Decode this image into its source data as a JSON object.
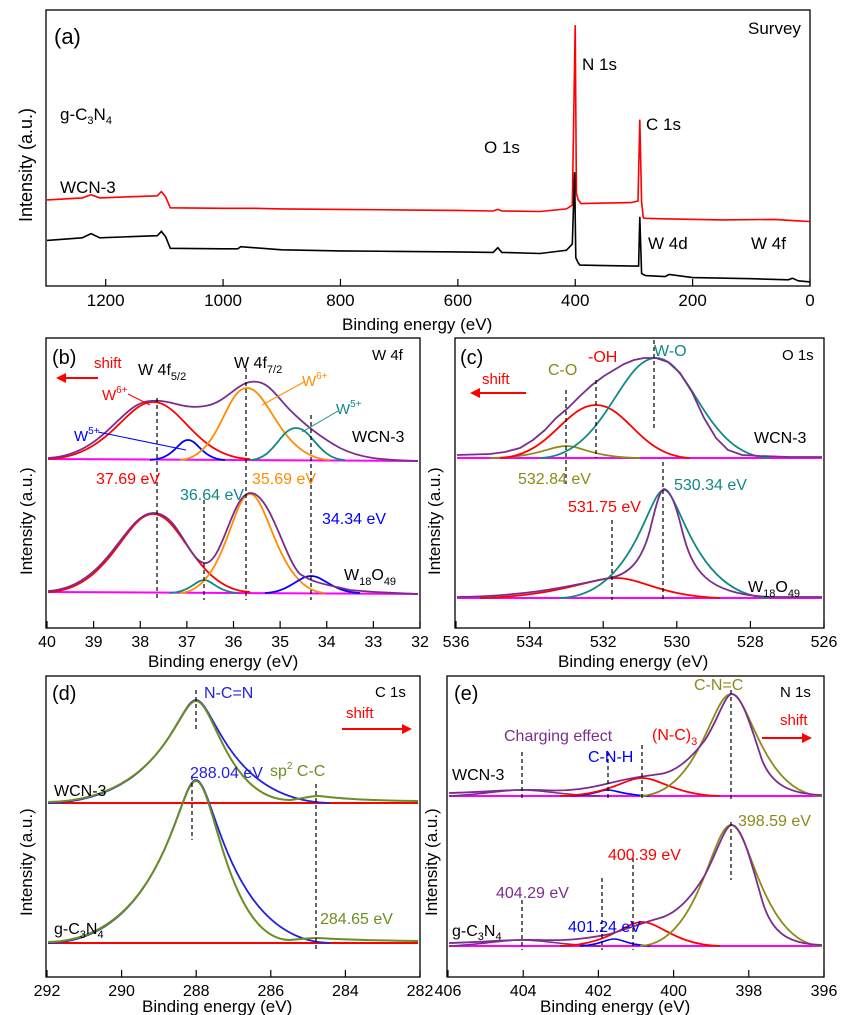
{
  "chart_data": [
    {
      "panel": "(a)",
      "type": "line",
      "title": "Survey",
      "xlabel": "Binding energy (eV)",
      "ylabel": "Intensity (a.u.)",
      "xlim": [
        1300,
        0
      ],
      "xticks": [
        1200,
        1000,
        800,
        600,
        400,
        200,
        0
      ],
      "series": [
        {
          "name": "g-C3N4",
          "color": "#ff0000",
          "x": [
            1300,
            1240,
            1225,
            1210,
            1160,
            1112,
            1105,
            1098,
            1090,
            1000,
            950,
            900,
            800,
            700,
            600,
            540,
            532,
            525,
            460,
            415,
            405,
            400,
            398,
            395,
            390,
            350,
            305,
            293,
            290,
            287,
            284,
            280,
            250,
            150,
            60,
            20,
            0
          ],
          "y": [
            1.62,
            1.66,
            1.72,
            1.66,
            1.68,
            1.7,
            1.78,
            1.68,
            1.47,
            1.46,
            1.46,
            1.45,
            1.44,
            1.43,
            1.42,
            1.41,
            1.44,
            1.41,
            1.4,
            1.45,
            1.52,
            4.95,
            1.75,
            1.62,
            1.55,
            1.56,
            1.57,
            1.6,
            3.15,
            1.58,
            1.28,
            1.27,
            1.26,
            1.24,
            1.25,
            1.22,
            1.21
          ]
        },
        {
          "name": "WCN-3",
          "color": "#000000",
          "x": [
            1300,
            1240,
            1225,
            1210,
            1160,
            1112,
            1105,
            1098,
            1090,
            1000,
            975,
            970,
            900,
            800,
            700,
            600,
            540,
            532,
            525,
            460,
            415,
            405,
            401,
            399,
            395,
            392,
            350,
            300,
            292,
            290,
            287,
            284,
            280,
            247,
            240,
            200,
            100,
            37,
            30,
            20,
            0
          ],
          "y": [
            0.85,
            0.9,
            0.98,
            0.9,
            0.92,
            0.94,
            1.02,
            0.92,
            0.7,
            0.69,
            0.69,
            0.73,
            0.67,
            0.65,
            0.64,
            0.63,
            0.62,
            0.71,
            0.62,
            0.6,
            0.66,
            0.78,
            2.15,
            0.52,
            0.42,
            0.38,
            0.37,
            0.36,
            0.36,
            1.3,
            0.22,
            0.2,
            0.18,
            0.16,
            0.2,
            0.14,
            0.12,
            0.1,
            0.13,
            0.08,
            0.06
          ]
        }
      ],
      "annotations": [
        "g-C3N4",
        "WCN-3",
        "N 1s",
        "C 1s",
        "O 1s",
        "W 4d",
        "W 4f"
      ]
    },
    {
      "panel": "(b)",
      "type": "line",
      "title": "W 4f",
      "xlabel": "Binding energy (eV)",
      "ylabel": "Intensity (a.u.)",
      "xlim": [
        40,
        32
      ],
      "xticks": [
        40,
        39,
        38,
        37,
        36,
        35,
        34,
        33,
        32
      ],
      "peak_positions_eV": [
        37.69,
        36.64,
        35.69,
        34.34
      ],
      "peak_labels": [
        "37.69 eV",
        "36.64 eV",
        "35.69 eV",
        "34.34 eV"
      ],
      "annotations": [
        "shift",
        "W 4f5/2",
        "W 4f7/2",
        "W6+",
        "W6+",
        "W5+",
        "W5+",
        "WCN-3",
        "W18O49"
      ]
    },
    {
      "panel": "(c)",
      "type": "line",
      "title": "O 1s",
      "xlabel": "Binding energy (eV)",
      "ylabel": "Intensity (a.u.)",
      "xlim": [
        536,
        526
      ],
      "xticks": [
        536,
        534,
        532,
        530,
        528,
        526
      ],
      "peak_positions_eV": [
        532.84,
        531.75,
        530.34
      ],
      "peak_labels": [
        "532.84 eV",
        "531.75 eV",
        "530.34 eV"
      ],
      "annotations": [
        "shift",
        "C-O",
        "-OH",
        "W-O",
        "WCN-3",
        "W18O49"
      ]
    },
    {
      "panel": "(d)",
      "type": "line",
      "title": "C 1s",
      "xlabel": "Binding energy (eV)",
      "ylabel": "Intensity (a.u.)",
      "xlim": [
        292,
        282
      ],
      "xticks": [
        292,
        290,
        288,
        286,
        284,
        282
      ],
      "peak_positions_eV": [
        288.04,
        284.65
      ],
      "peak_labels": [
        "288.04 eV",
        "284.65 eV"
      ],
      "annotations": [
        "N-C=N",
        "sp2 C-C",
        "shift",
        "WCN-3",
        "g-C3N4"
      ]
    },
    {
      "panel": "(e)",
      "type": "line",
      "title": "N 1s",
      "xlabel": "Binding energy (eV)",
      "ylabel": "Intensity (a.u.)",
      "xlim": [
        406,
        396
      ],
      "xticks": [
        406,
        404,
        402,
        400,
        398,
        396
      ],
      "peak_positions_eV": [
        404.29,
        401.24,
        400.39,
        398.59
      ],
      "peak_labels": [
        "404.29 eV",
        "401.24 eV",
        "400.39 eV",
        "398.59 eV"
      ],
      "annotations": [
        "C-N=C",
        "Charging effect",
        "C-N-H",
        "(N-C)3",
        "shift",
        "WCN-3",
        "g-C3N4"
      ]
    }
  ]
}
